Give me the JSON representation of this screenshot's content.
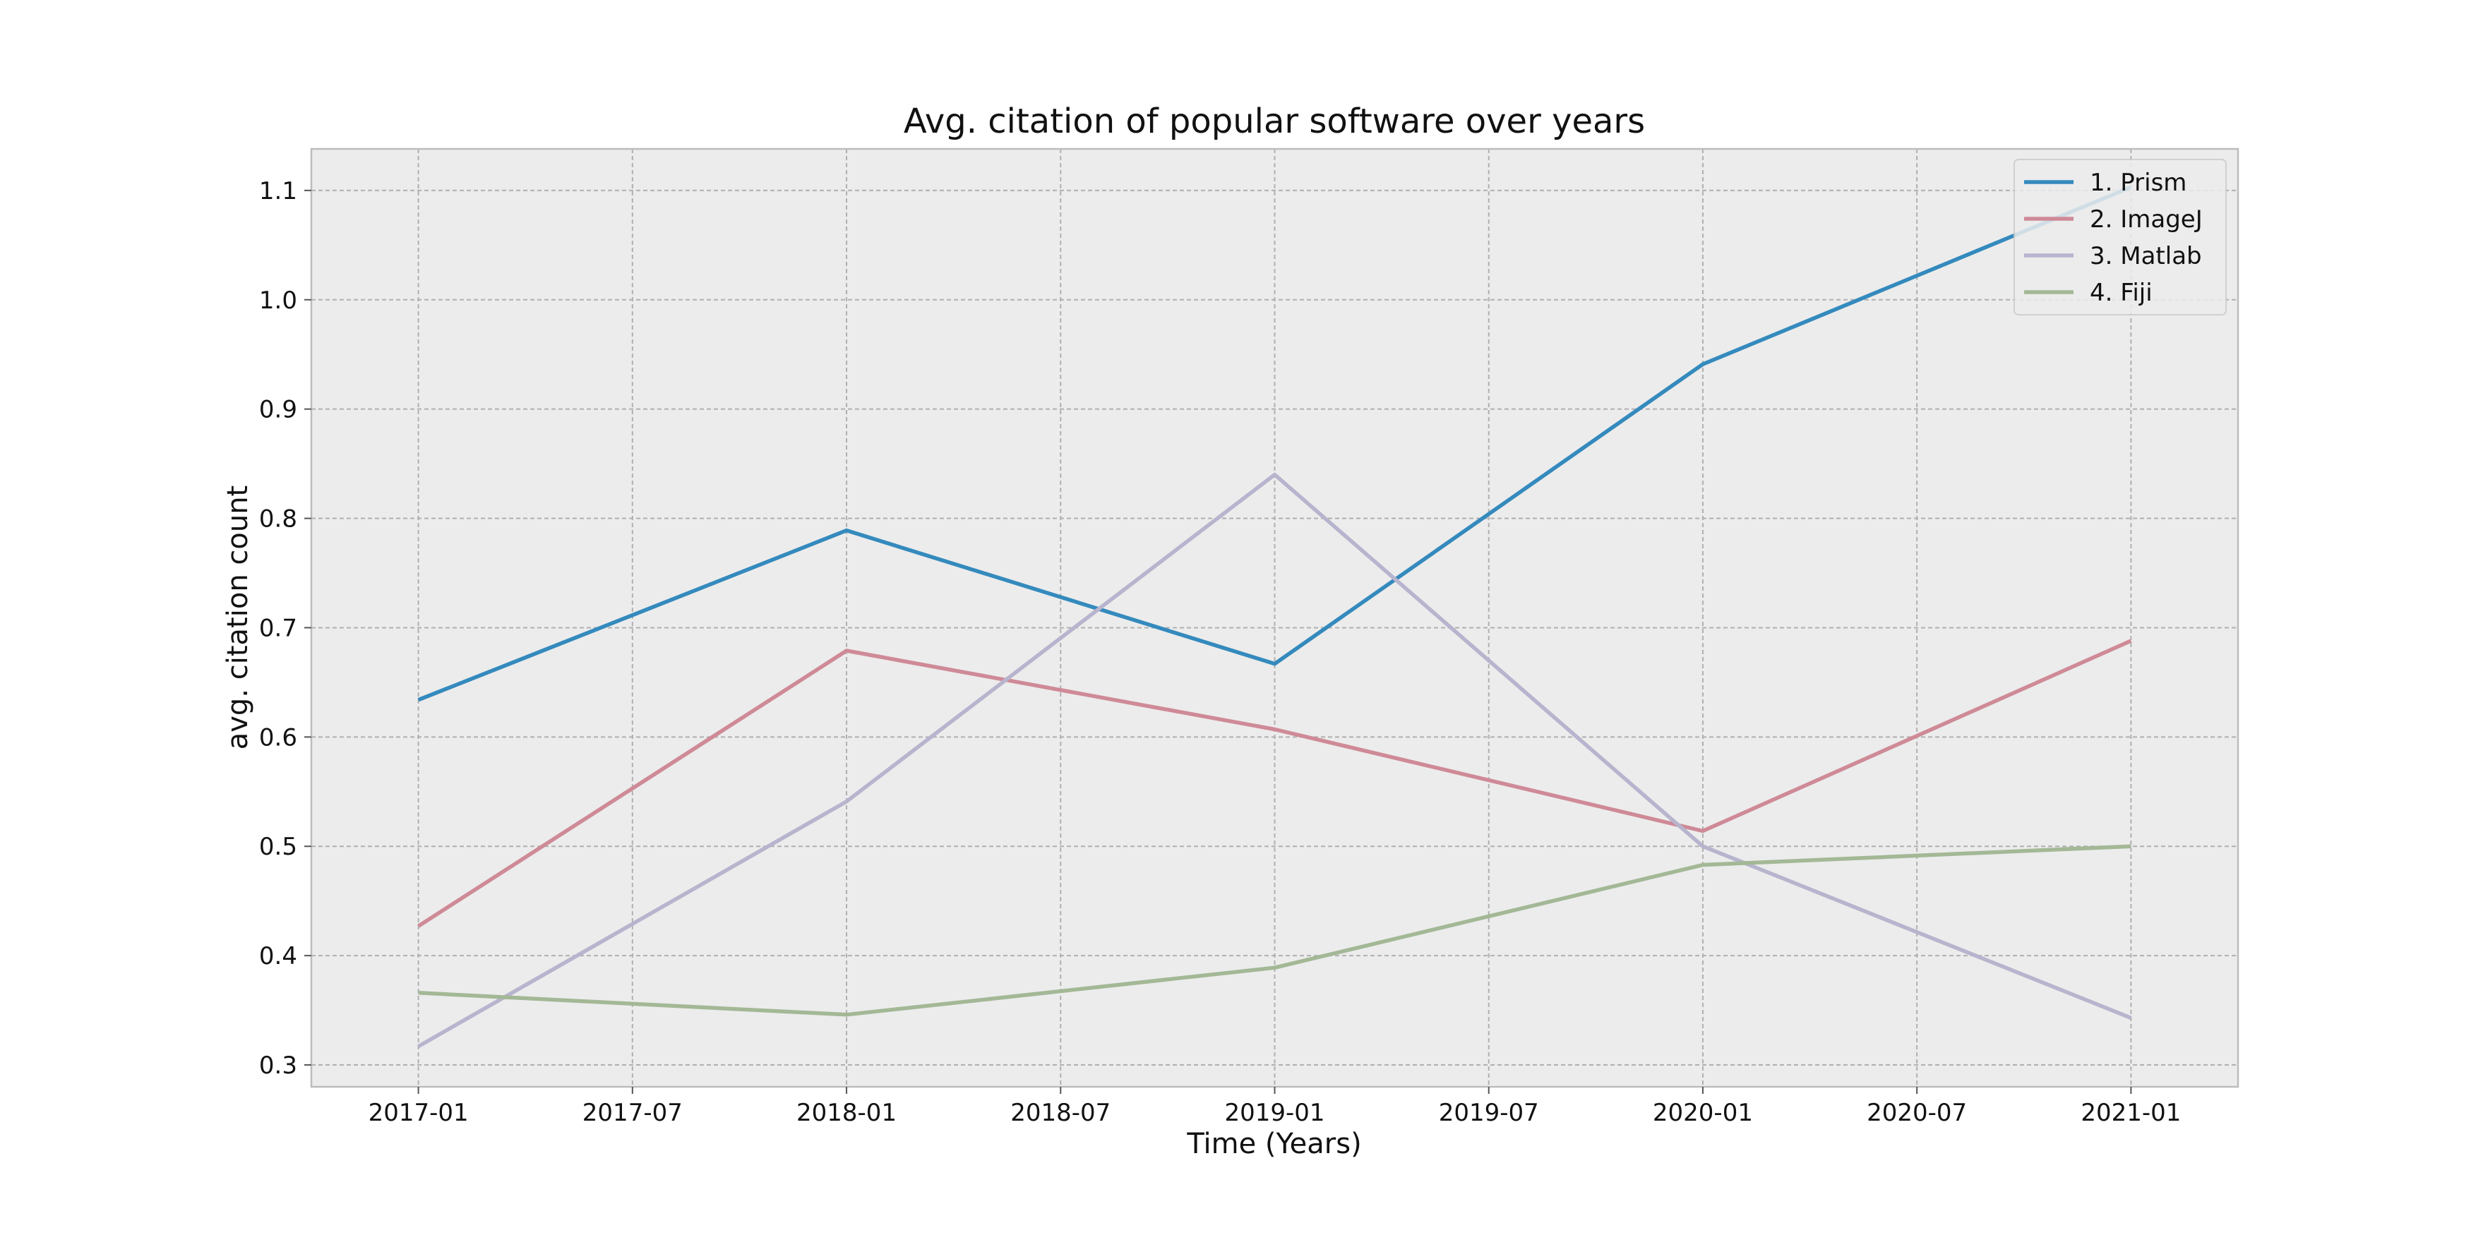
{
  "chart_data": {
    "type": "line",
    "title": "Avg. citation of popular software over years",
    "xlabel": "Time (Years)",
    "ylabel": "avg.  citation count",
    "x": [
      "2017-01",
      "2018-01",
      "2019-01",
      "2020-01",
      "2021-01"
    ],
    "x_ticks": [
      "2017-01",
      "2017-07",
      "2018-01",
      "2018-07",
      "2019-01",
      "2019-07",
      "2020-01",
      "2020-07",
      "2021-01"
    ],
    "y_ticks": [
      "0.3",
      "0.4",
      "0.5",
      "0.6",
      "0.7",
      "0.8",
      "0.9",
      "1.0",
      "1.1"
    ],
    "ylim": [
      0.28,
      1.138
    ],
    "xlim": [
      "2016-10",
      "2021-04"
    ],
    "grid": true,
    "legend_position": "top-right",
    "series": [
      {
        "name": "1. Prism",
        "color": "#348abd",
        "values": [
          0.634,
          0.789,
          0.667,
          0.941,
          1.103
        ]
      },
      {
        "name": "2. ImageJ",
        "color": "#cf8a97",
        "values": [
          0.427,
          0.679,
          0.607,
          0.514,
          0.688
        ]
      },
      {
        "name": "3. Matlab",
        "color": "#b7b4ce",
        "values": [
          0.317,
          0.541,
          0.84,
          0.5,
          0.343
        ]
      },
      {
        "name": "4. Fiji",
        "color": "#a3b896",
        "values": [
          0.366,
          0.346,
          0.389,
          0.483,
          0.5
        ]
      }
    ]
  }
}
